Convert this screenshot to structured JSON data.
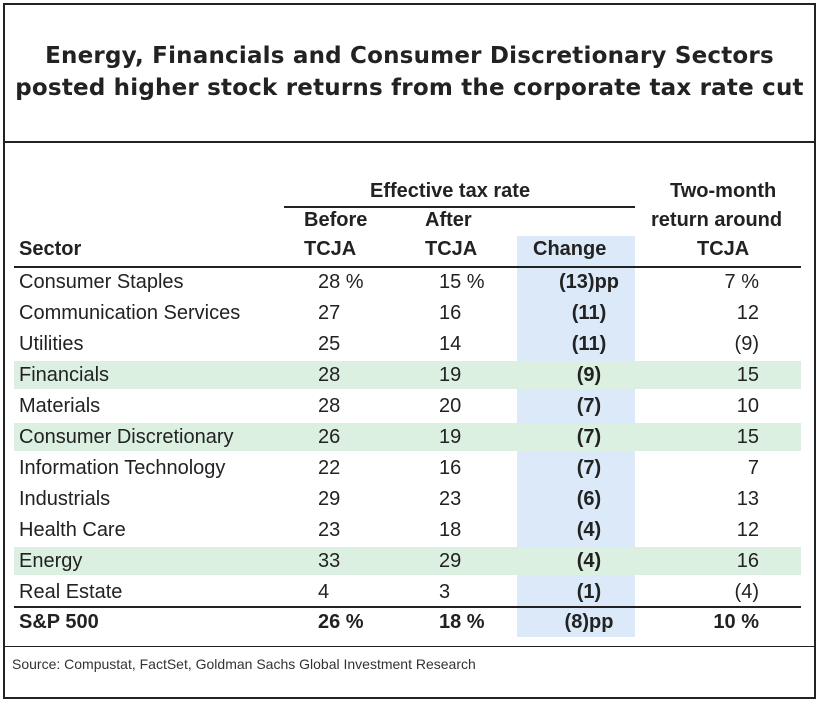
{
  "title_lines": [
    "Energy, Financials and Consumer Discretionary Sectors",
    "posted higher stock returns from the corporate tax rate cut"
  ],
  "headers": {
    "group": "Effective tax rate",
    "sector": "Sector",
    "before_l1": "Before",
    "before_l2": "TCJA",
    "after_l1": "After",
    "after_l2": "TCJA",
    "change": "Change",
    "ret_l1": "Two-month",
    "ret_l2": "return around",
    "ret_l3": "TCJA"
  },
  "chart_data": {
    "type": "table",
    "columns": [
      "Sector",
      "Before TCJA",
      "After TCJA",
      "Change",
      "Two-month return around TCJA"
    ],
    "rows": [
      {
        "sector": "Consumer Staples",
        "before": "28 %",
        "after": "15 %",
        "change": "(13)pp",
        "return": "7 %",
        "highlight": false
      },
      {
        "sector": "Communication Services",
        "before": "27",
        "after": "16",
        "change": "(11)",
        "return": "12",
        "highlight": false
      },
      {
        "sector": "Utilities",
        "before": "25",
        "after": "14",
        "change": "(11)",
        "return": "(9)",
        "highlight": false
      },
      {
        "sector": "Financials",
        "before": "28",
        "after": "19",
        "change": "(9)",
        "return": "15",
        "highlight": true
      },
      {
        "sector": "Materials",
        "before": "28",
        "after": "20",
        "change": "(7)",
        "return": "10",
        "highlight": false
      },
      {
        "sector": "Consumer Discretionary",
        "before": "26",
        "after": "19",
        "change": "(7)",
        "return": "15",
        "highlight": true
      },
      {
        "sector": "Information Technology",
        "before": "22",
        "after": "16",
        "change": "(7)",
        "return": "7",
        "highlight": false
      },
      {
        "sector": "Industrials",
        "before": "29",
        "after": "23",
        "change": "(6)",
        "return": "13",
        "highlight": false
      },
      {
        "sector": "Health Care",
        "before": "23",
        "after": "18",
        "change": "(4)",
        "return": "12",
        "highlight": false
      },
      {
        "sector": "Energy",
        "before": "33",
        "after": "29",
        "change": "(4)",
        "return": "16",
        "highlight": true
      },
      {
        "sector": "Real Estate",
        "before": "4",
        "after": "3",
        "change": "(1)",
        "return": "(4)",
        "highlight": false
      }
    ],
    "total": {
      "sector": "S&P 500",
      "before": "26 %",
      "after": "18 %",
      "change": "(8)pp",
      "return": "10 %"
    }
  },
  "colors": {
    "highlight_row": "#dcf0e2",
    "change_column": "#dbe9f8",
    "text": "#222222"
  },
  "source": "Source: Compustat, FactSet, Goldman Sachs Global Investment Research"
}
